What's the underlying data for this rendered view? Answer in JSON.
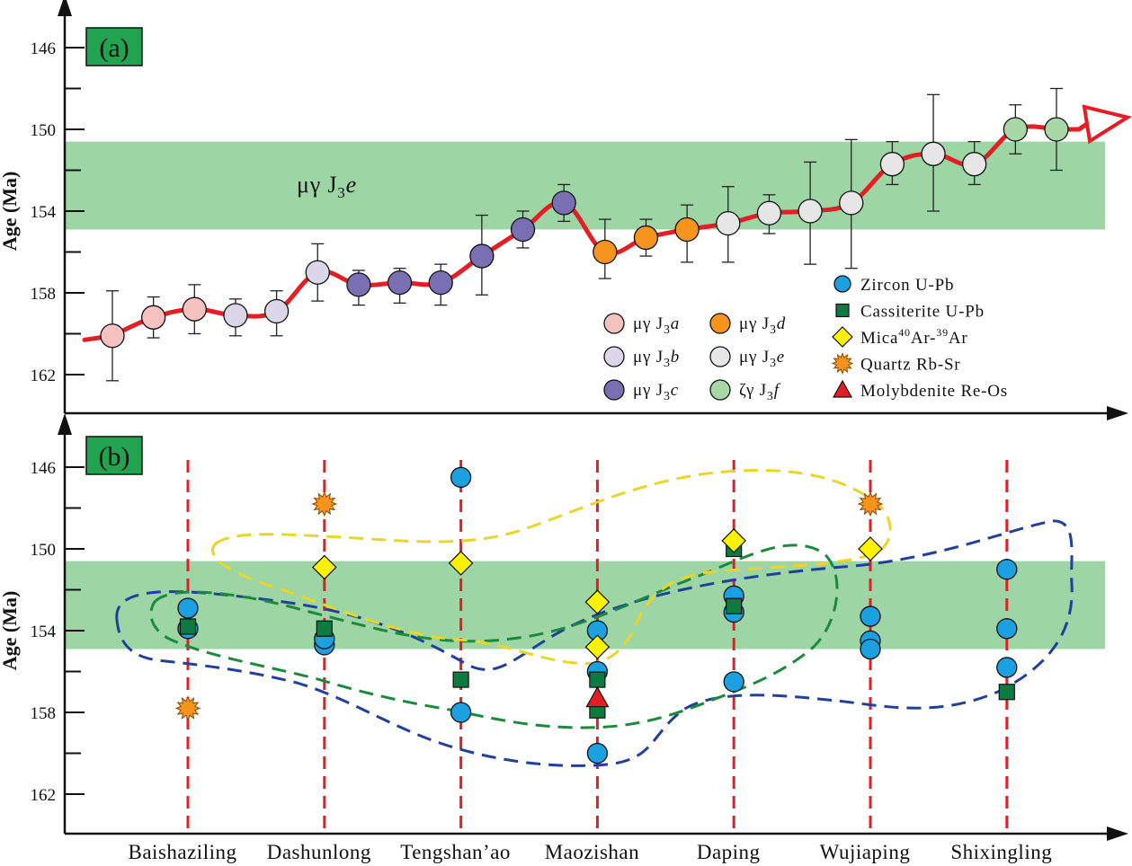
{
  "colors": {
    "band": "#9dd5a4",
    "trend": "#e31e24",
    "axis": "#111111",
    "tag_bg": "#21a350",
    "zircon": "#1ba1e2",
    "cassiterite": "#0d7a41",
    "mica": "#fff200",
    "quartz": "#f7941d",
    "molybdenite": "#e31e24",
    "envelope_blue": "#21409a",
    "envelope_green": "#1a8a3c",
    "envelope_yellow": "#e8d62a",
    "dashed_line": "#e31e24",
    "group_a": "#f6c2c0",
    "group_b": "#dcd6ea",
    "group_c": "#7b6fb3",
    "group_d": "#f7941d",
    "group_e": "#e6e6e6",
    "group_f": "#a8d8a7"
  },
  "chart_data": [
    {
      "type": "line",
      "panel_label": "(a)",
      "ylabel": "Age (Ma)",
      "yticks": [
        "146",
        "150",
        "154",
        "158",
        "162"
      ],
      "ylim": [
        144.5,
        163.5
      ],
      "y_inverted": true,
      "band": {
        "from": 150.6,
        "to": 154.9,
        "label_main": "μγ J",
        "label_sub": "3",
        "label_italic": "e"
      },
      "legend": [
        {
          "main": "μγ J",
          "sub": "3",
          "italic": "a",
          "color_key": "group_a"
        },
        {
          "main": "μγ J",
          "sub": "3",
          "italic": "b",
          "color_key": "group_b"
        },
        {
          "main": "μγ J",
          "sub": "3",
          "italic": "c",
          "color_key": "group_c"
        },
        {
          "main": "μγ J",
          "sub": "3",
          "italic": "d",
          "color_key": "group_d"
        },
        {
          "main": "μγ J",
          "sub": "3",
          "italic": "e",
          "color_key": "group_e"
        },
        {
          "main": "ζγ J",
          "sub": "3",
          "italic": "f",
          "color_key": "group_f"
        }
      ],
      "points": [
        {
          "group": "group_a",
          "age": 160.1,
          "err_low": 162.3,
          "err_high": 157.9
        },
        {
          "group": "group_a",
          "age": 159.2,
          "err_low": 160.2,
          "err_high": 158.2
        },
        {
          "group": "group_a",
          "age": 158.8,
          "err_low": 160.0,
          "err_high": 157.6
        },
        {
          "group": "group_b",
          "age": 159.1,
          "err_low": 160.1,
          "err_high": 158.3
        },
        {
          "group": "group_b",
          "age": 158.9,
          "err_low": 160.1,
          "err_high": 157.9
        },
        {
          "group": "group_b",
          "age": 157.0,
          "err_low": 158.4,
          "err_high": 155.6
        },
        {
          "group": "group_c",
          "age": 157.6,
          "err_low": 158.6,
          "err_high": 156.9
        },
        {
          "group": "group_c",
          "age": 157.5,
          "err_low": 158.5,
          "err_high": 156.8
        },
        {
          "group": "group_c",
          "age": 157.5,
          "err_low": 158.6,
          "err_high": 156.6
        },
        {
          "group": "group_c",
          "age": 156.2,
          "err_low": 158.1,
          "err_high": 154.2
        },
        {
          "group": "group_c",
          "age": 154.9,
          "err_low": 155.8,
          "err_high": 154.0
        },
        {
          "group": "group_c",
          "age": 153.6,
          "err_low": 154.5,
          "err_high": 152.7
        },
        {
          "group": "group_d",
          "age": 156.0,
          "err_low": 157.3,
          "err_high": 154.4
        },
        {
          "group": "group_d",
          "age": 155.3,
          "err_low": 156.2,
          "err_high": 154.4
        },
        {
          "group": "group_d",
          "age": 154.9,
          "err_low": 156.5,
          "err_high": 153.7
        },
        {
          "group": "group_e",
          "age": 154.6,
          "err_low": 156.5,
          "err_high": 152.8
        },
        {
          "group": "group_e",
          "age": 154.1,
          "err_low": 155.1,
          "err_high": 153.2
        },
        {
          "group": "group_e",
          "age": 154.0,
          "err_low": 156.6,
          "err_high": 151.6
        },
        {
          "group": "group_e",
          "age": 153.6,
          "err_low": 156.8,
          "err_high": 150.5
        },
        {
          "group": "group_e",
          "age": 151.7,
          "err_low": 152.7,
          "err_high": 150.6
        },
        {
          "group": "group_e",
          "age": 151.2,
          "err_low": 154.0,
          "err_high": 148.3
        },
        {
          "group": "group_e",
          "age": 151.7,
          "err_low": 152.7,
          "err_high": 150.6
        },
        {
          "group": "group_f",
          "age": 150.0,
          "err_low": 151.2,
          "err_high": 148.8
        },
        {
          "group": "group_f",
          "age": 150.0,
          "err_low": 152.0,
          "err_high": 148.0
        }
      ],
      "trend_line": [
        160.1,
        159.2,
        158.8,
        159.1,
        158.9,
        157.0,
        157.6,
        157.5,
        157.5,
        156.2,
        154.9,
        153.6,
        156.0,
        155.3,
        154.9,
        154.6,
        154.1,
        154.0,
        153.6,
        151.7,
        151.2,
        151.7,
        150.0,
        150.0
      ]
    },
    {
      "type": "scatter",
      "panel_label": "(b)",
      "ylabel": "Age (Ma)",
      "yticks": [
        "146",
        "150",
        "154",
        "158",
        "162"
      ],
      "ylim": [
        144.5,
        163.5
      ],
      "y_inverted": true,
      "band": {
        "from": 150.6,
        "to": 154.9
      },
      "categories": [
        "Baishaziling",
        "Dashunlong",
        "Tengshan’ao",
        "Maozishan",
        "Daping",
        "Wujiaping",
        "Shixingling"
      ],
      "legend": [
        {
          "label": "Zircon U-Pb",
          "marker": "circle",
          "color_key": "zircon"
        },
        {
          "label": "Cassiterite U-Pb",
          "marker": "square",
          "color_key": "cassiterite"
        },
        {
          "label_main": "Mica",
          "label_sup1": "40",
          "label_mid": "Ar-",
          "label_sup2": "39",
          "label_end": "Ar",
          "marker": "diamond",
          "color_key": "mica"
        },
        {
          "label": "Quartz Rb-Sr",
          "marker": "star",
          "color_key": "quartz"
        },
        {
          "label": "Molybdenite Re-Os",
          "marker": "triangle",
          "color_key": "molybdenite"
        }
      ],
      "series": [
        {
          "method": "zircon",
          "points": [
            [
              0,
              152.9
            ],
            [
              0,
              153.9
            ],
            [
              1,
              154.7
            ],
            [
              1,
              154.4
            ],
            [
              2,
              146.5
            ],
            [
              2,
              158.0
            ],
            [
              3,
              154.0
            ],
            [
              3,
              156.0
            ],
            [
              3,
              160.0
            ],
            [
              4,
              152.3
            ],
            [
              4,
              153.1
            ],
            [
              4,
              156.5
            ],
            [
              5,
              153.3
            ],
            [
              5,
              154.5
            ],
            [
              5,
              154.9
            ],
            [
              6,
              151.0
            ],
            [
              6,
              153.9
            ],
            [
              6,
              155.8
            ]
          ]
        },
        {
          "method": "cassiterite",
          "points": [
            [
              0,
              153.8
            ],
            [
              1,
              153.9
            ],
            [
              2,
              156.4
            ],
            [
              3,
              156.4
            ],
            [
              3,
              157.9
            ],
            [
              4,
              150.0
            ],
            [
              4,
              152.8
            ],
            [
              6,
              157.0
            ]
          ]
        },
        {
          "method": "mica",
          "points": [
            [
              1,
              150.9
            ],
            [
              2,
              150.7
            ],
            [
              3,
              152.6
            ],
            [
              3,
              154.8
            ],
            [
              4,
              149.6
            ],
            [
              5,
              150.0
            ]
          ]
        },
        {
          "method": "quartz",
          "points": [
            [
              0,
              157.8
            ],
            [
              1,
              147.8
            ],
            [
              5,
              147.8
            ]
          ]
        },
        {
          "method": "molybdenite",
          "points": [
            [
              3,
              157.3
            ]
          ]
        }
      ]
    }
  ]
}
